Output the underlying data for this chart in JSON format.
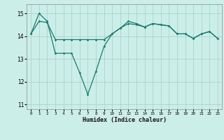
{
  "xlabel": "Humidex (Indice chaleur)",
  "background_color": "#cceee8",
  "grid_color": "#aad4cc",
  "line_color": "#1a7a6e",
  "xlim": [
    -0.5,
    23.5
  ],
  "ylim": [
    10.8,
    15.4
  ],
  "yticks": [
    11,
    12,
    13,
    14,
    15
  ],
  "xticks": [
    0,
    1,
    2,
    3,
    4,
    5,
    6,
    7,
    8,
    9,
    10,
    11,
    12,
    13,
    14,
    15,
    16,
    17,
    18,
    19,
    20,
    21,
    22,
    23
  ],
  "line1_x": [
    0,
    1,
    2,
    3,
    4,
    5,
    6,
    7,
    8,
    9,
    10,
    11,
    12,
    13,
    14,
    15,
    16,
    17,
    18,
    19,
    20,
    21,
    22,
    23
  ],
  "line1_y": [
    14.1,
    15.0,
    14.65,
    13.25,
    13.25,
    13.25,
    12.4,
    11.45,
    12.45,
    13.55,
    14.1,
    14.35,
    14.65,
    14.55,
    14.4,
    14.55,
    14.5,
    14.45,
    14.1,
    14.1,
    13.9,
    14.1,
    14.2,
    13.9
  ],
  "line2_x": [
    0,
    1,
    2,
    3,
    4,
    5,
    6,
    7,
    8,
    9,
    10,
    11,
    12,
    13,
    14,
    15,
    16,
    17,
    18,
    19,
    20,
    21,
    22,
    23
  ],
  "line2_y": [
    14.1,
    14.65,
    14.6,
    13.85,
    13.85,
    13.85,
    13.85,
    13.85,
    13.85,
    13.85,
    14.1,
    14.35,
    14.55,
    14.5,
    14.4,
    14.55,
    14.5,
    14.45,
    14.1,
    14.1,
    13.9,
    14.1,
    14.2,
    13.9
  ]
}
